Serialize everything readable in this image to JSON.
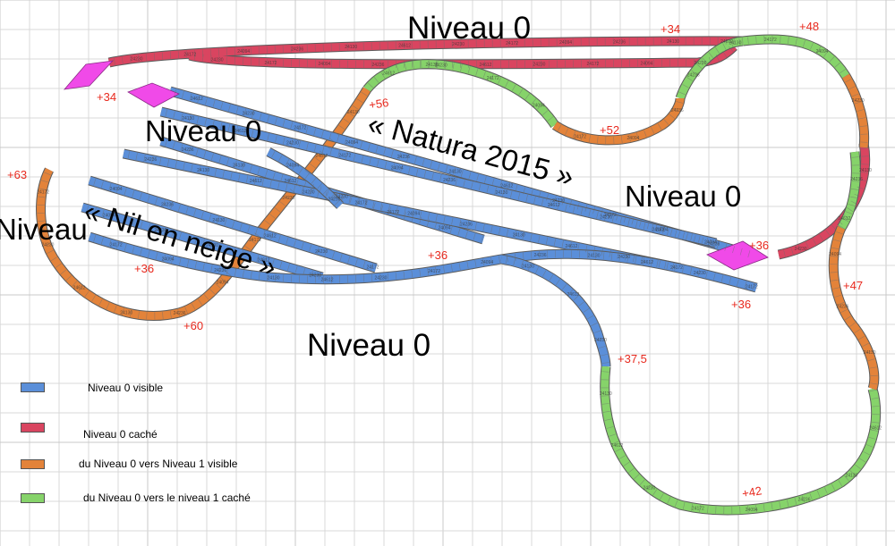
{
  "colors": {
    "visible_level0": "#5b8fd9",
    "hidden_level0": "#d94560",
    "ramp_visible": "#e3833a",
    "ramp_hidden": "#86d36a",
    "marker": "#f04ae8",
    "elevation_text": "#e8291e"
  },
  "labels": {
    "top": "Niveau 0",
    "upper_left": "Niveau 0",
    "right": "Niveau 0",
    "bottom_center": "Niveau 0",
    "left_partial": "Niveau",
    "natura": "« Natura 2015 »",
    "nil": "« Nil en neige »"
  },
  "elevations": [
    {
      "id": "e1",
      "text": "+34"
    },
    {
      "id": "e2",
      "text": "+48"
    },
    {
      "id": "e3",
      "text": "+34"
    },
    {
      "id": "e4",
      "text": "+56"
    },
    {
      "id": "e5",
      "text": "+52"
    },
    {
      "id": "e6",
      "text": "+63"
    },
    {
      "id": "e7",
      "text": "+36"
    },
    {
      "id": "e8",
      "text": "+36"
    },
    {
      "id": "e9",
      "text": "+60"
    },
    {
      "id": "e10",
      "text": "+36"
    },
    {
      "id": "e11",
      "text": "+36"
    },
    {
      "id": "e12",
      "text": "+47"
    },
    {
      "id": "e13",
      "text": "+37,5"
    },
    {
      "id": "e14",
      "text": "+42"
    }
  ],
  "legend": [
    {
      "label": "Niveau 0 visible",
      "color": "#5b8fd9"
    },
    {
      "label": "Niveau 0 caché",
      "color": "#d94560"
    },
    {
      "label": "du Niveau 0 vers Niveau 1 visible",
      "color": "#e3833a"
    },
    {
      "label": "du Niveau 0 vers le niveau 1 caché",
      "color": "#86d36a"
    }
  ],
  "piece_codes": {
    "a": "24230",
    "b": "24172",
    "c": "24094",
    "d": "24236",
    "e": "24130",
    "f": "24612"
  }
}
